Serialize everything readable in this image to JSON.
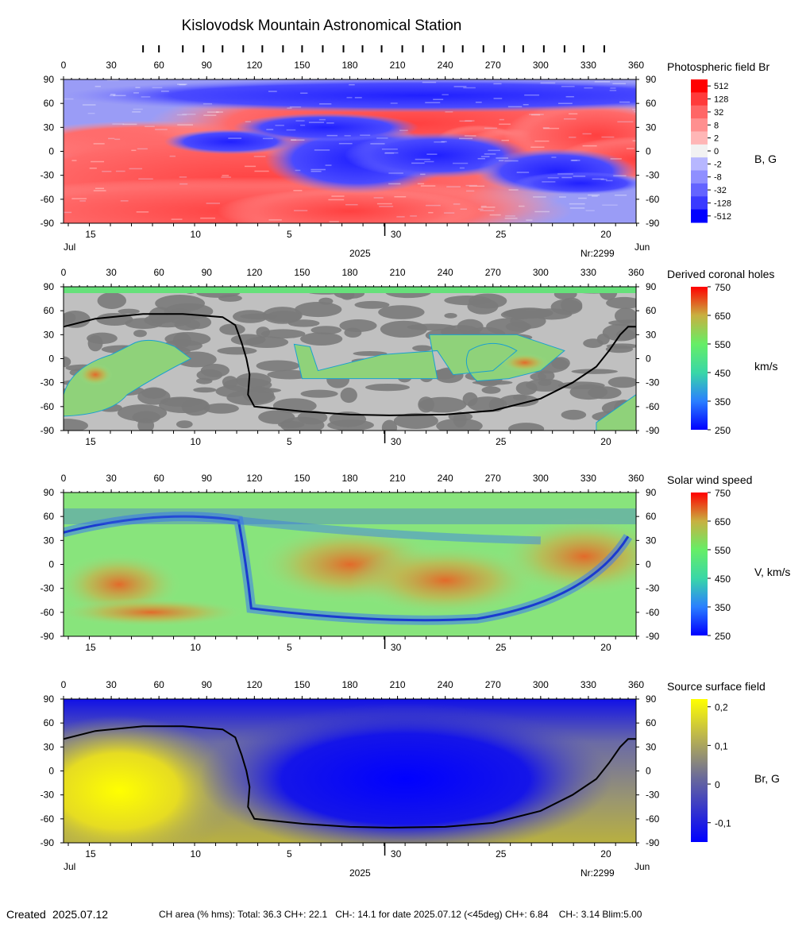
{
  "title": "Kislovodsk Mountain Astronomical Station",
  "created_label": "Created",
  "created_date": "2025.07.12",
  "footer_stats": "CH area (% hms): Total: 36.3 CH+: 22.1   CH-: 14.1 for date 2025.07.12 (<45deg) CH+: 6.84    CH-: 3.14 Blim:5.00",
  "year_label": "2025",
  "rotation_label": "Nr:2299",
  "month_left": "Jul",
  "month_right": "Jun",
  "top_ticks_marks": [
    50,
    60,
    75,
    88,
    100,
    113,
    125,
    138,
    150,
    163,
    176,
    188,
    200,
    213,
    226,
    239,
    251,
    264,
    277,
    289,
    302,
    315,
    327,
    340
  ],
  "chart_data": [
    {
      "type": "heatmap",
      "panel": "photospheric",
      "title": "Photospheric field Br",
      "unit_label": "B, G",
      "x_ticks": [
        "0",
        "30",
        "60",
        "90",
        "120",
        "150",
        "180",
        "210",
        "240",
        "270",
        "300",
        "330",
        "360"
      ],
      "y_ticks": [
        "90",
        "60",
        "30",
        "0",
        "-30",
        "-60",
        "-90"
      ],
      "xlim": [
        0,
        360
      ],
      "ylim": [
        -90,
        90
      ],
      "date_ticks": [
        {
          "label": "15",
          "x": 17
        },
        {
          "label": "10",
          "x": 83
        },
        {
          "label": "5",
          "x": 142
        },
        {
          "label": "30",
          "x": 209
        },
        {
          "label": "25",
          "x": 275
        },
        {
          "label": "20",
          "x": 341
        }
      ],
      "colorbar_ticks": [
        "512",
        "128",
        "32",
        "8",
        "2",
        "0",
        "-2",
        "-8",
        "-32",
        "-128",
        "-512"
      ],
      "colorbar_colors": [
        "#ff0000",
        "#ff3a3a",
        "#ff6666",
        "#ff8f8f",
        "#ffb6b6",
        "#f2f2f2",
        "#b7b7ff",
        "#8f8fff",
        "#6464ff",
        "#3a3aff",
        "#0000ff"
      ]
    },
    {
      "type": "heatmap",
      "panel": "coronal-holes",
      "title": "Derived coronal holes",
      "unit_label": "km/s",
      "x_ticks": [
        "0",
        "30",
        "60",
        "90",
        "120",
        "150",
        "180",
        "210",
        "240",
        "270",
        "300",
        "330",
        "360"
      ],
      "y_ticks": [
        "90",
        "60",
        "30",
        "0",
        "-30",
        "-60",
        "-90"
      ],
      "xlim": [
        0,
        360
      ],
      "ylim": [
        -90,
        90
      ],
      "date_ticks": [
        {
          "label": "15",
          "x": 17
        },
        {
          "label": "10",
          "x": 83
        },
        {
          "label": "5",
          "x": 142
        },
        {
          "label": "30",
          "x": 209
        },
        {
          "label": "25",
          "x": 275
        },
        {
          "label": "20",
          "x": 341
        }
      ],
      "colorbar_ticks": [
        "750",
        "650",
        "550",
        "450",
        "350",
        "250"
      ],
      "colorbar_range": [
        250,
        750
      ]
    },
    {
      "type": "heatmap",
      "panel": "wind-speed",
      "title": "Solar wind speed",
      "unit_label": "V, km/s",
      "x_ticks": [
        "0",
        "30",
        "60",
        "90",
        "120",
        "150",
        "180",
        "210",
        "240",
        "270",
        "300",
        "330",
        "360"
      ],
      "y_ticks": [
        "90",
        "60",
        "30",
        "0",
        "-30",
        "-60",
        "-90"
      ],
      "xlim": [
        0,
        360
      ],
      "ylim": [
        -90,
        90
      ],
      "date_ticks": [
        {
          "label": "15",
          "x": 17
        },
        {
          "label": "10",
          "x": 83
        },
        {
          "label": "5",
          "x": 142
        },
        {
          "label": "30",
          "x": 209
        },
        {
          "label": "25",
          "x": 275
        },
        {
          "label": "20",
          "x": 341
        }
      ],
      "colorbar_ticks": [
        "750",
        "650",
        "550",
        "450",
        "350",
        "250"
      ],
      "colorbar_range": [
        250,
        750
      ]
    },
    {
      "type": "heatmap",
      "panel": "source-surface",
      "title": "Source surface field",
      "unit_label": "Br, G",
      "x_ticks": [
        "0",
        "30",
        "60",
        "90",
        "120",
        "150",
        "180",
        "210",
        "240",
        "270",
        "300",
        "330",
        "360"
      ],
      "y_ticks": [
        "90",
        "60",
        "30",
        "0",
        "-30",
        "-60",
        "-90"
      ],
      "xlim": [
        0,
        360
      ],
      "ylim": [
        -90,
        90
      ],
      "date_ticks": [
        {
          "label": "15",
          "x": 17
        },
        {
          "label": "10",
          "x": 83
        },
        {
          "label": "5",
          "x": 142
        },
        {
          "label": "30",
          "x": 209
        },
        {
          "label": "25",
          "x": 275
        },
        {
          "label": "20",
          "x": 341
        }
      ],
      "colorbar_ticks": [
        "0,2",
        "0,1",
        "0",
        "-0,1"
      ],
      "colorbar_range": [
        -0.15,
        0.22
      ],
      "neutral_line": [
        [
          0,
          40
        ],
        [
          20,
          50
        ],
        [
          50,
          56
        ],
        [
          75,
          56
        ],
        [
          100,
          52
        ],
        [
          108,
          42
        ],
        [
          112,
          20
        ],
        [
          115,
          0
        ],
        [
          117,
          -20
        ],
        [
          116,
          -45
        ],
        [
          120,
          -60
        ],
        [
          150,
          -66
        ],
        [
          180,
          -70
        ],
        [
          205,
          -71
        ],
        [
          240,
          -70
        ],
        [
          270,
          -65
        ],
        [
          300,
          -50
        ],
        [
          320,
          -30
        ],
        [
          335,
          -10
        ],
        [
          343,
          10
        ],
        [
          350,
          30
        ],
        [
          355,
          40
        ],
        [
          360,
          40
        ]
      ]
    }
  ]
}
